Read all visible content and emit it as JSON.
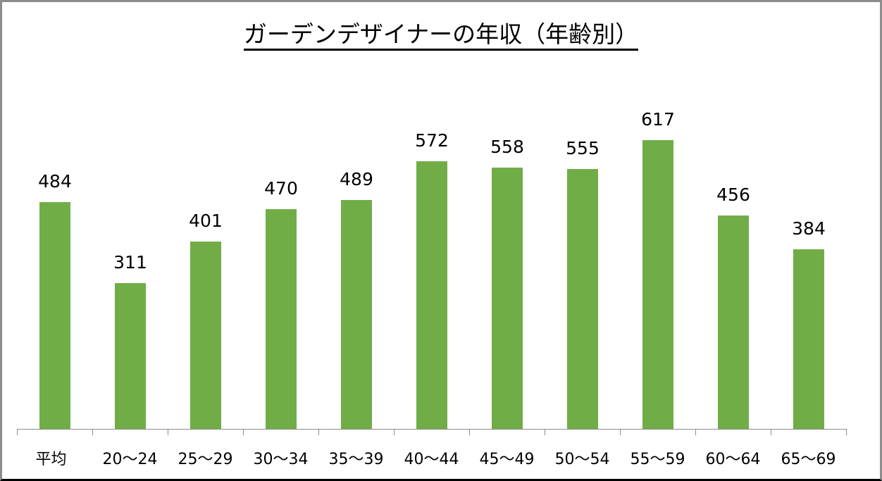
{
  "title": "ガーデンデザイナーの年収（年齢別）",
  "colors": {
    "bar": "#70ad47",
    "axis": "#8c8c8c",
    "text": "#000000"
  },
  "chart_data": {
    "type": "bar",
    "title": "ガーデンデザイナーの年収（年齢別）",
    "xlabel": "",
    "ylabel": "",
    "categories": [
      "平均",
      "20〜24",
      "25〜29",
      "30〜34",
      "35〜39",
      "40〜44",
      "45〜49",
      "50〜54",
      "55〜59",
      "60〜64",
      "65〜69"
    ],
    "values": [
      484,
      311,
      401,
      470,
      489,
      572,
      558,
      555,
      617,
      456,
      384
    ],
    "data_labels": true,
    "grid": false,
    "legend": "none",
    "ylim": [
      0,
      700
    ]
  }
}
